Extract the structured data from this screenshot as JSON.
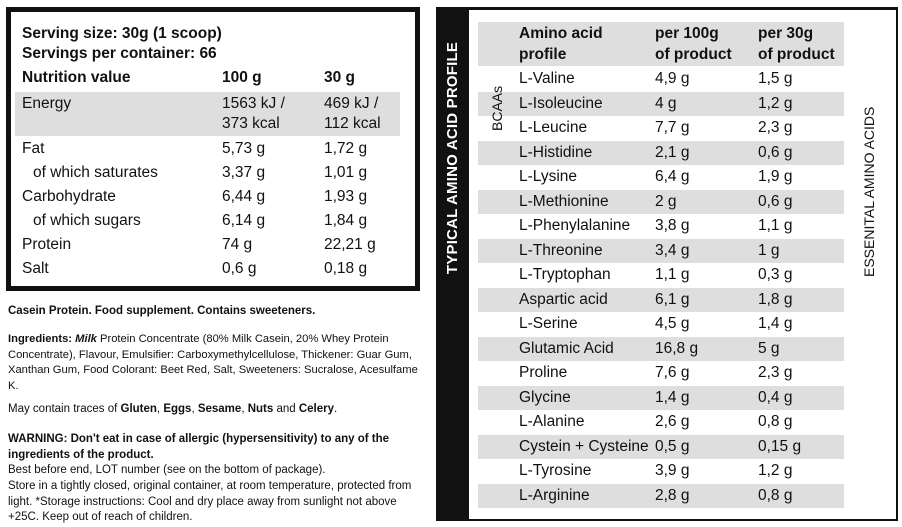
{
  "nutrition": {
    "serving_size": "Serving size: 30g (1 scoop)",
    "servings_per_container": "Servings per container: 66",
    "header": {
      "label": "Nutrition value",
      "per100": "100 g",
      "per30": "30 g"
    },
    "rows": [
      {
        "label": "Energy",
        "v100": "1563 kJ /",
        "v100b": "373 kcal",
        "v30": "469 kJ /",
        "v30b": "112 kcal"
      },
      {
        "label": "Fat",
        "v100": "5,73 g",
        "v30": "1,72 g"
      },
      {
        "label": "of which saturates",
        "v100": "3,37 g",
        "v30": "1,01 g"
      },
      {
        "label": "Carbohydrate",
        "v100": "6,44 g",
        "v30": "1,93 g"
      },
      {
        "label": "of which sugars",
        "v100": "6,14 g",
        "v30": "1,84 g"
      },
      {
        "label": "Protein",
        "v100": "74 g",
        "v30": "22,21 g"
      },
      {
        "label": "Salt",
        "v100": "0,6 g",
        "v30": "0,18 g"
      }
    ]
  },
  "text": {
    "product_line": "Casein Protein. Food supplement. Contains sweeteners.",
    "ingredients_label": "Ingredients:",
    "ingredients_milk": "Milk",
    "ingredients_text": " Protein Concentrate (80% Milk Casein, 20% Whey Protein Concentrate), Flavour, Emulsifier: Carboxymethylcellulose, Thickener: Guar Gum, Xanthan Gum, Food Colorant: Beet Red, Salt, Sweeteners: Sucralose, Acesulfame K.",
    "traces_prefix": "May contain traces of ",
    "traces_gluten": "Gluten",
    "traces_sep1": ", ",
    "traces_eggs": "Eggs",
    "traces_sep2": ", ",
    "traces_sesame": "Sesame",
    "traces_sep3": ", ",
    "traces_nuts": "Nuts",
    "traces_and": " and ",
    "traces_celery": "Celery",
    "traces_end": ".",
    "warning": "WARNING: Don't eat in case of allergic (hypersensitivity) to any of the ingredients of the product.",
    "best_before": "Best before end, LOT number (see on the bottom of package).",
    "storage": "Store in a tightly closed, original container, at room temperature, protected from light.  *Storage instructions: Cool and dry place away from sunlight not above +25C. Keep out of reach of children."
  },
  "amino": {
    "title": "TYPICAL AMINO ACID PROFILE",
    "header": {
      "col1a": "Amino acid",
      "col1b": "profile",
      "col2a": "per 100g",
      "col2b": "of product",
      "col3a": "per 30g",
      "col3b": "of product"
    },
    "bcaa_label": "BCAAs",
    "essential_label": "ESSENITAL AMINO ACIDS",
    "rows": [
      {
        "name": "L-Valine",
        "v100": "4,9 g",
        "v30": "1,5 g"
      },
      {
        "name": "L-Isoleucine",
        "v100": "4 g",
        "v30": "1,2 g"
      },
      {
        "name": "L-Leucine",
        "v100": "7,7 g",
        "v30": "2,3 g"
      },
      {
        "name": "L-Histidine",
        "v100": "2,1 g",
        "v30": "0,6 g"
      },
      {
        "name": "L-Lysine",
        "v100": "6,4 g",
        "v30": "1,9 g"
      },
      {
        "name": "L-Methionine",
        "v100": "2 g",
        "v30": "0,6 g"
      },
      {
        "name": "L-Phenylalanine",
        "v100": "3,8 g",
        "v30": "1,1 g"
      },
      {
        "name": "L-Threonine",
        "v100": "3,4 g",
        "v30": "1 g"
      },
      {
        "name": "L-Tryptophan",
        "v100": "1,1 g",
        "v30": "0,3 g"
      },
      {
        "name": "Aspartic acid",
        "v100": "6,1 g",
        "v30": "1,8 g"
      },
      {
        "name": "L-Serine",
        "v100": "4,5 g",
        "v30": "1,4 g"
      },
      {
        "name": "Glutamic Acid",
        "v100": "16,8 g",
        "v30": "5 g"
      },
      {
        "name": "Proline",
        "v100": "7,6 g",
        "v30": "2,3 g"
      },
      {
        "name": "Glycine",
        "v100": "1,4 g",
        "v30": "0,4 g"
      },
      {
        "name": "L-Alanine",
        "v100": "2,6 g",
        "v30": "0,8 g"
      },
      {
        "name": "Cystein + Cysteine",
        "v100": "0,5 g",
        "v30": "0,15 g"
      },
      {
        "name": "L-Tyrosine",
        "v100": "3,9 g",
        "v30": "1,2 g"
      },
      {
        "name": "L-Arginine",
        "v100": "2,8 g",
        "v30": "0,8 g"
      }
    ]
  }
}
